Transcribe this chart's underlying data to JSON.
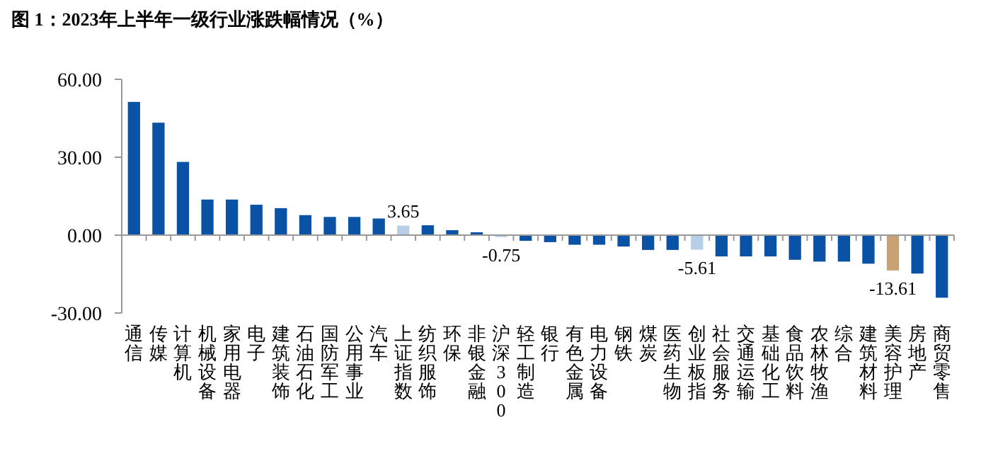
{
  "chart_data": {
    "type": "bar",
    "title": "图 1：2023年上半年一级行业涨跌幅情况（%）",
    "categories": [
      "通信",
      "传媒",
      "计算机",
      "机械设备",
      "家用电器",
      "电子",
      "建筑装饰",
      "石油石化",
      "国防军工",
      "公用事业",
      "汽车",
      "上证指数",
      "纺织服饰",
      "环保",
      "非银金融",
      "沪深300",
      "轻工制造",
      "银行",
      "有色金属",
      "电力设备",
      "钢铁",
      "煤炭",
      "医药生物",
      "创业板指",
      "社会服务",
      "交通运输",
      "基础化工",
      "食品饮料",
      "农林牧渔",
      "综合",
      "建筑材料",
      "美容护理",
      "房地产",
      "商贸零售"
    ],
    "values": [
      51.3,
      43.3,
      28.2,
      13.7,
      13.7,
      11.7,
      10.4,
      7.7,
      7.0,
      7.0,
      6.4,
      3.65,
      3.8,
      1.9,
      1.1,
      -0.75,
      -2.2,
      -2.7,
      -3.7,
      -3.7,
      -4.4,
      -5.7,
      -5.7,
      -5.61,
      -8.2,
      -8.2,
      -8.2,
      -9.5,
      -10.2,
      -10.2,
      -11.0,
      -13.61,
      -14.8,
      -24.1
    ],
    "colors": [
      "#0a52a5",
      "#0a52a5",
      "#0a52a5",
      "#0a52a5",
      "#0a52a5",
      "#0a52a5",
      "#0a52a5",
      "#0a52a5",
      "#0a52a5",
      "#0a52a5",
      "#0a52a5",
      "#b8cde6",
      "#0a52a5",
      "#0a52a5",
      "#0a52a5",
      "#b8cde6",
      "#0a52a5",
      "#0a52a5",
      "#0a52a5",
      "#0a52a5",
      "#0a52a5",
      "#0a52a5",
      "#0a52a5",
      "#b8cde6",
      "#0a52a5",
      "#0a52a5",
      "#0a52a5",
      "#0a52a5",
      "#0a52a5",
      "#0a52a5",
      "#0a52a5",
      "#c8a273",
      "#0a52a5",
      "#0a52a5"
    ],
    "value_labels": [
      null,
      null,
      null,
      null,
      null,
      null,
      null,
      null,
      null,
      null,
      null,
      "3.65",
      null,
      null,
      null,
      "-0.75",
      null,
      null,
      null,
      null,
      null,
      null,
      null,
      "-5.61",
      null,
      null,
      null,
      null,
      null,
      null,
      null,
      "-13.61",
      null,
      null
    ],
    "ylim": [
      -30,
      60
    ],
    "yticks": [
      {
        "value": 60,
        "label": "60.00"
      },
      {
        "value": 30,
        "label": "30.00"
      },
      {
        "value": 0,
        "label": "0.00"
      },
      {
        "value": -30,
        "label": "-30.00"
      }
    ]
  }
}
